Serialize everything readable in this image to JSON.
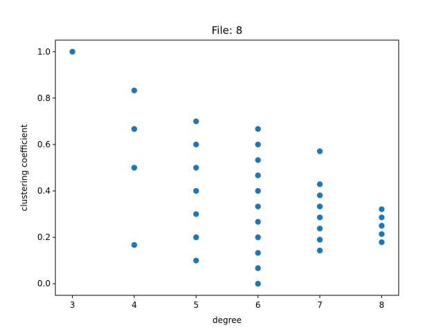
{
  "chart_data": {
    "type": "scatter",
    "title": "File: 8",
    "xlabel": "degree",
    "ylabel": "clustering coefficient",
    "xlim": [
      2.725,
      8.275
    ],
    "ylim": [
      -0.05,
      1.05
    ],
    "xticks": [
      3,
      4,
      5,
      6,
      7,
      8
    ],
    "yticks": [
      0.0,
      0.2,
      0.4,
      0.6,
      0.8,
      1.0
    ],
    "ytick_labels": [
      "0.0",
      "0.2",
      "0.4",
      "0.6",
      "0.8",
      "1.0"
    ],
    "grid": false,
    "marker_color": "#1f77b4",
    "points": [
      {
        "x": 3,
        "y": 1.0
      },
      {
        "x": 4,
        "y": 0.833
      },
      {
        "x": 4,
        "y": 0.667
      },
      {
        "x": 4,
        "y": 0.5
      },
      {
        "x": 4,
        "y": 0.167
      },
      {
        "x": 5,
        "y": 0.7
      },
      {
        "x": 5,
        "y": 0.6
      },
      {
        "x": 5,
        "y": 0.5
      },
      {
        "x": 5,
        "y": 0.4
      },
      {
        "x": 5,
        "y": 0.3
      },
      {
        "x": 5,
        "y": 0.2
      },
      {
        "x": 5,
        "y": 0.1
      },
      {
        "x": 6,
        "y": 0.667
      },
      {
        "x": 6,
        "y": 0.6
      },
      {
        "x": 6,
        "y": 0.533
      },
      {
        "x": 6,
        "y": 0.467
      },
      {
        "x": 6,
        "y": 0.4
      },
      {
        "x": 6,
        "y": 0.333
      },
      {
        "x": 6,
        "y": 0.267
      },
      {
        "x": 6,
        "y": 0.2
      },
      {
        "x": 6,
        "y": 0.133
      },
      {
        "x": 6,
        "y": 0.067
      },
      {
        "x": 6,
        "y": 0.0
      },
      {
        "x": 7,
        "y": 0.571
      },
      {
        "x": 7,
        "y": 0.429
      },
      {
        "x": 7,
        "y": 0.381
      },
      {
        "x": 7,
        "y": 0.333
      },
      {
        "x": 7,
        "y": 0.286
      },
      {
        "x": 7,
        "y": 0.238
      },
      {
        "x": 7,
        "y": 0.19
      },
      {
        "x": 7,
        "y": 0.143
      },
      {
        "x": 8,
        "y": 0.321
      },
      {
        "x": 8,
        "y": 0.286
      },
      {
        "x": 8,
        "y": 0.25
      },
      {
        "x": 8,
        "y": 0.214
      },
      {
        "x": 8,
        "y": 0.179
      }
    ]
  }
}
